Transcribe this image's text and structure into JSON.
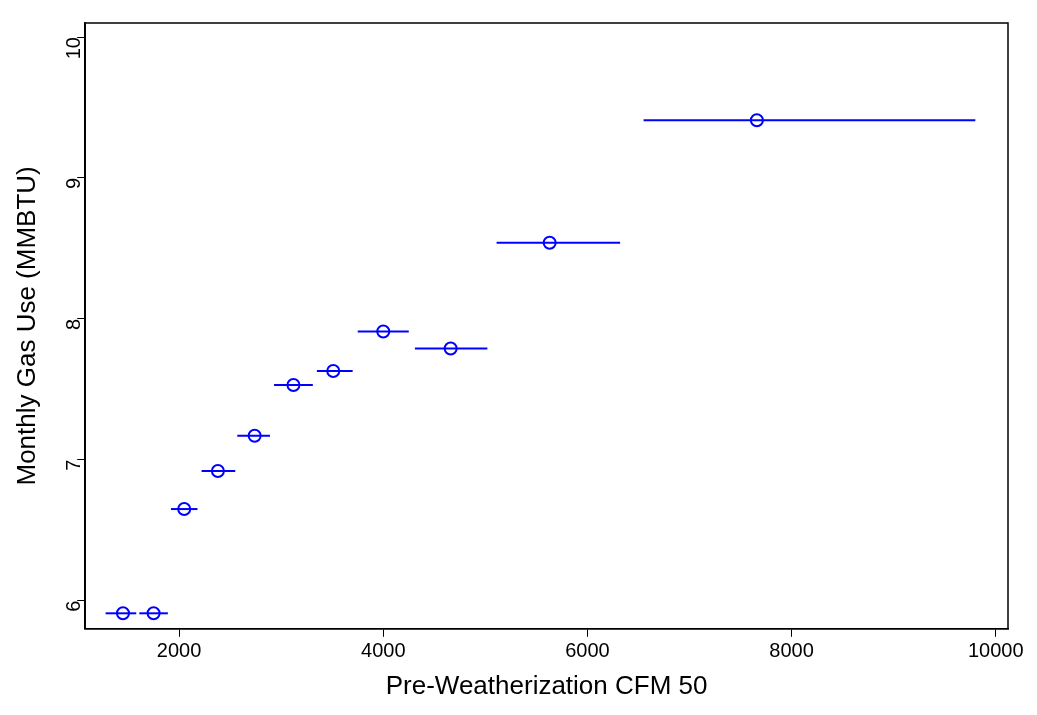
{
  "chart_data": {
    "type": "scatter",
    "xlabel": "Pre-Weatherization CFM 50",
    "ylabel": "Monthly Gas Use (MMBTU)",
    "x": [
      1450,
      1750,
      2050,
      2380,
      2740,
      3120,
      3510,
      4000,
      4660,
      5630,
      7660
    ],
    "values": [
      5.91,
      5.91,
      6.65,
      6.92,
      7.17,
      7.53,
      7.63,
      7.91,
      7.79,
      8.54,
      9.41
    ],
    "xerrors": [
      [
        1280,
        1580
      ],
      [
        1610,
        1890
      ],
      [
        1920,
        2180
      ],
      [
        2220,
        2550
      ],
      [
        2570,
        2890
      ],
      [
        2930,
        3310
      ],
      [
        3350,
        3700
      ],
      [
        3750,
        4250
      ],
      [
        4310,
        5020
      ],
      [
        5110,
        6320
      ],
      [
        6550,
        9800
      ]
    ],
    "color": "#0000ff",
    "marker": "circle",
    "grid": false,
    "legend": false,
    "xlim": [
      1080,
      10120
    ],
    "ylim": [
      5.8,
      10.1
    ],
    "xticks": [
      2000,
      4000,
      6000,
      8000,
      10000
    ],
    "yticks": [
      6,
      7,
      8,
      9,
      10
    ]
  }
}
